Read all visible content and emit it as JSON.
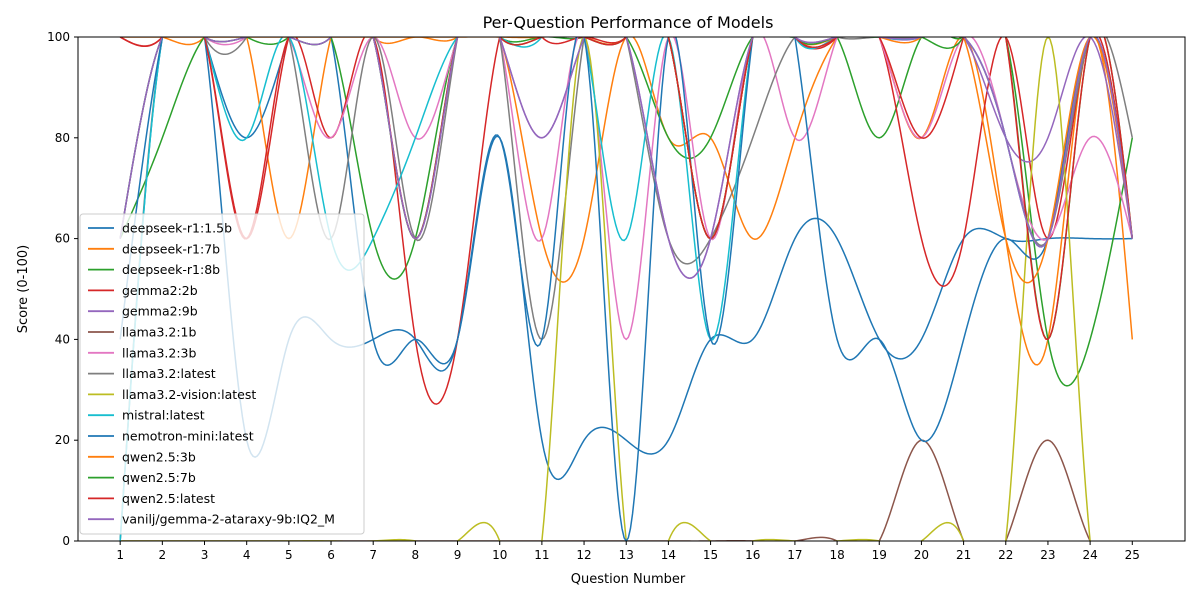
{
  "chart_data": {
    "type": "line",
    "title": "Per-Question Performance of Models",
    "xlabel": "Question Number",
    "ylabel": "Score (0-100)",
    "xlim": [
      0,
      26.25
    ],
    "ylim": [
      0,
      100
    ],
    "x": [
      1,
      2,
      3,
      4,
      5,
      6,
      7,
      8,
      9,
      10,
      11,
      12,
      13,
      14,
      15,
      16,
      17,
      18,
      19,
      20,
      21,
      22,
      23,
      24,
      25
    ],
    "x_ticks": [
      "1",
      "2",
      "3",
      "4",
      "5",
      "6",
      "7",
      "8",
      "9",
      "10",
      "11",
      "12",
      "13",
      "14",
      "15",
      "16",
      "17",
      "18",
      "19",
      "20",
      "21",
      "22",
      "23",
      "24",
      "25"
    ],
    "y_ticks": [
      0,
      20,
      40,
      60,
      80,
      100
    ],
    "grid": false,
    "legend_position": "lower-left",
    "smoothed": true,
    "series": [
      {
        "name": "deepseek-r1:1.5b",
        "color": "#1f77b4",
        "values": [
          0,
          100,
          100,
          80,
          100,
          100,
          40,
          40,
          40,
          80,
          20,
          20,
          20,
          20,
          40,
          40,
          60,
          60,
          40,
          40,
          60,
          60,
          60,
          60,
          60
        ]
      },
      {
        "name": "deepseek-r1:7b",
        "color": "#ff7f0e",
        "values": [
          100,
          100,
          100,
          100,
          60,
          100,
          100,
          100,
          100,
          100,
          60,
          60,
          100,
          80,
          80,
          60,
          80,
          100,
          100,
          80,
          100,
          60,
          40,
          100,
          40
        ]
      },
      {
        "name": "deepseek-r1:8b",
        "color": "#2ca02c",
        "values": [
          60,
          80,
          100,
          100,
          100,
          100,
          60,
          60,
          100,
          100,
          100,
          100,
          100,
          80,
          80,
          100,
          100,
          100,
          80,
          100,
          100,
          100,
          40,
          40,
          80
        ]
      },
      {
        "name": "gemma2:2b",
        "color": "#d62728",
        "values": [
          100,
          100,
          100,
          60,
          100,
          80,
          100,
          40,
          40,
          100,
          100,
          100,
          100,
          100,
          60,
          100,
          100,
          100,
          100,
          60,
          60,
          100,
          60,
          100,
          60
        ]
      },
      {
        "name": "gemma2:9b",
        "color": "#9467bd",
        "values": [
          60,
          100,
          100,
          100,
          100,
          100,
          100,
          60,
          100,
          100,
          80,
          100,
          100,
          60,
          60,
          100,
          100,
          100,
          100,
          100,
          100,
          80,
          80,
          100,
          60
        ]
      },
      {
        "name": "llama3.2:1b",
        "color": "#8c564b",
        "values": [
          0,
          0,
          0,
          0,
          0,
          0,
          0,
          0,
          0,
          0,
          0,
          0,
          0,
          0,
          0,
          0,
          0,
          0,
          0,
          20,
          0,
          0,
          20,
          0,
          0
        ]
      },
      {
        "name": "llama3.2:3b",
        "color": "#e377c2",
        "values": [
          60,
          100,
          100,
          100,
          100,
          80,
          100,
          80,
          100,
          100,
          60,
          100,
          40,
          100,
          60,
          100,
          80,
          100,
          100,
          80,
          100,
          80,
          60,
          80,
          60
        ]
      },
      {
        "name": "llama3.2:latest",
        "color": "#7f7f7f",
        "values": [
          0,
          100,
          100,
          100,
          100,
          60,
          100,
          60,
          100,
          100,
          40,
          100,
          100,
          60,
          60,
          80,
          100,
          100,
          100,
          100,
          100,
          80,
          60,
          100,
          80
        ]
      },
      {
        "name": "llama3.2-vision:latest",
        "color": "#bcbd22",
        "values": [
          0,
          0,
          0,
          0,
          0,
          0,
          0,
          0,
          0,
          0,
          0,
          100,
          0,
          0,
          0,
          0,
          0,
          0,
          0,
          0,
          0,
          0,
          100,
          0,
          0
        ]
      },
      {
        "name": "mistral:latest",
        "color": "#17becf",
        "values": [
          0,
          100,
          100,
          80,
          100,
          60,
          60,
          80,
          100,
          100,
          100,
          100,
          60,
          100,
          40,
          100,
          100,
          100,
          100,
          100,
          100,
          80,
          60,
          100,
          60
        ]
      },
      {
        "name": "nemotron-mini:latest",
        "color": "#1f77b4",
        "values": [
          40,
          100,
          100,
          20,
          40,
          40,
          40,
          40,
          40,
          80,
          40,
          100,
          0,
          100,
          40,
          100,
          100,
          40,
          40,
          20,
          40,
          60,
          60,
          100,
          60
        ]
      },
      {
        "name": "qwen2.5:3b",
        "color": "#ff7f0e",
        "values": [
          100,
          100,
          100,
          100,
          100,
          100,
          100,
          100,
          100,
          100,
          100,
          100,
          100,
          100,
          60,
          100,
          100,
          100,
          100,
          100,
          100,
          60,
          60,
          100,
          60
        ]
      },
      {
        "name": "qwen2.5:7b",
        "color": "#2ca02c",
        "values": [
          60,
          100,
          100,
          100,
          100,
          100,
          100,
          60,
          100,
          100,
          100,
          100,
          100,
          100,
          60,
          100,
          100,
          100,
          100,
          100,
          100,
          100,
          40,
          100,
          60
        ]
      },
      {
        "name": "qwen2.5:latest",
        "color": "#d62728",
        "values": [
          100,
          100,
          100,
          60,
          100,
          100,
          100,
          60,
          100,
          100,
          100,
          100,
          100,
          100,
          60,
          100,
          100,
          100,
          100,
          80,
          100,
          100,
          40,
          100,
          60
        ]
      },
      {
        "name": "vanilj/gemma-2-ataraxy-9b:IQ2_M",
        "color": "#9467bd",
        "values": [
          60,
          100,
          100,
          100,
          100,
          100,
          100,
          60,
          100,
          100,
          80,
          100,
          100,
          60,
          60,
          100,
          100,
          100,
          100,
          100,
          100,
          80,
          60,
          100,
          60
        ]
      }
    ]
  }
}
